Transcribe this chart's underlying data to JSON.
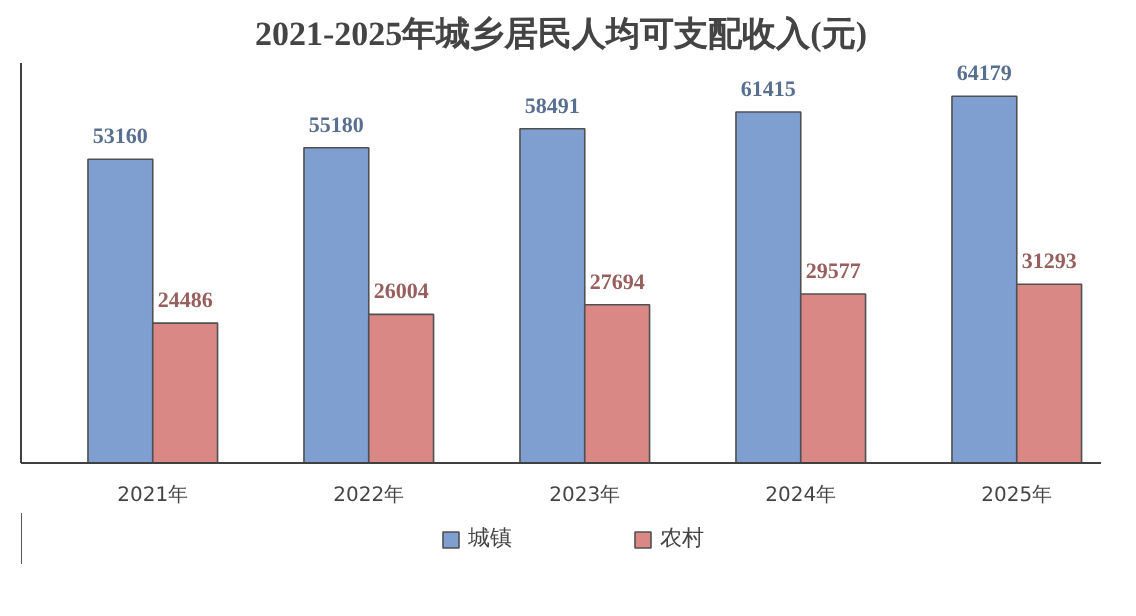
{
  "chart_data": {
    "type": "bar",
    "title": "2021-2025年城乡居民人均可支配收入(元)",
    "categories": [
      "2021年",
      "2022年",
      "2023年",
      "2024年",
      "2025年"
    ],
    "series": [
      {
        "name": "城镇",
        "color": "#7f9fd0",
        "values": [
          53160,
          55180,
          58491,
          61415,
          64179
        ]
      },
      {
        "name": "农村",
        "color": "#d98886",
        "values": [
          24486,
          26004,
          27694,
          29577,
          31293
        ]
      }
    ],
    "ylim": [
      0,
      70000
    ],
    "tick_labels": "x",
    "data_labels": true,
    "grid": false,
    "legend": "bottom"
  }
}
